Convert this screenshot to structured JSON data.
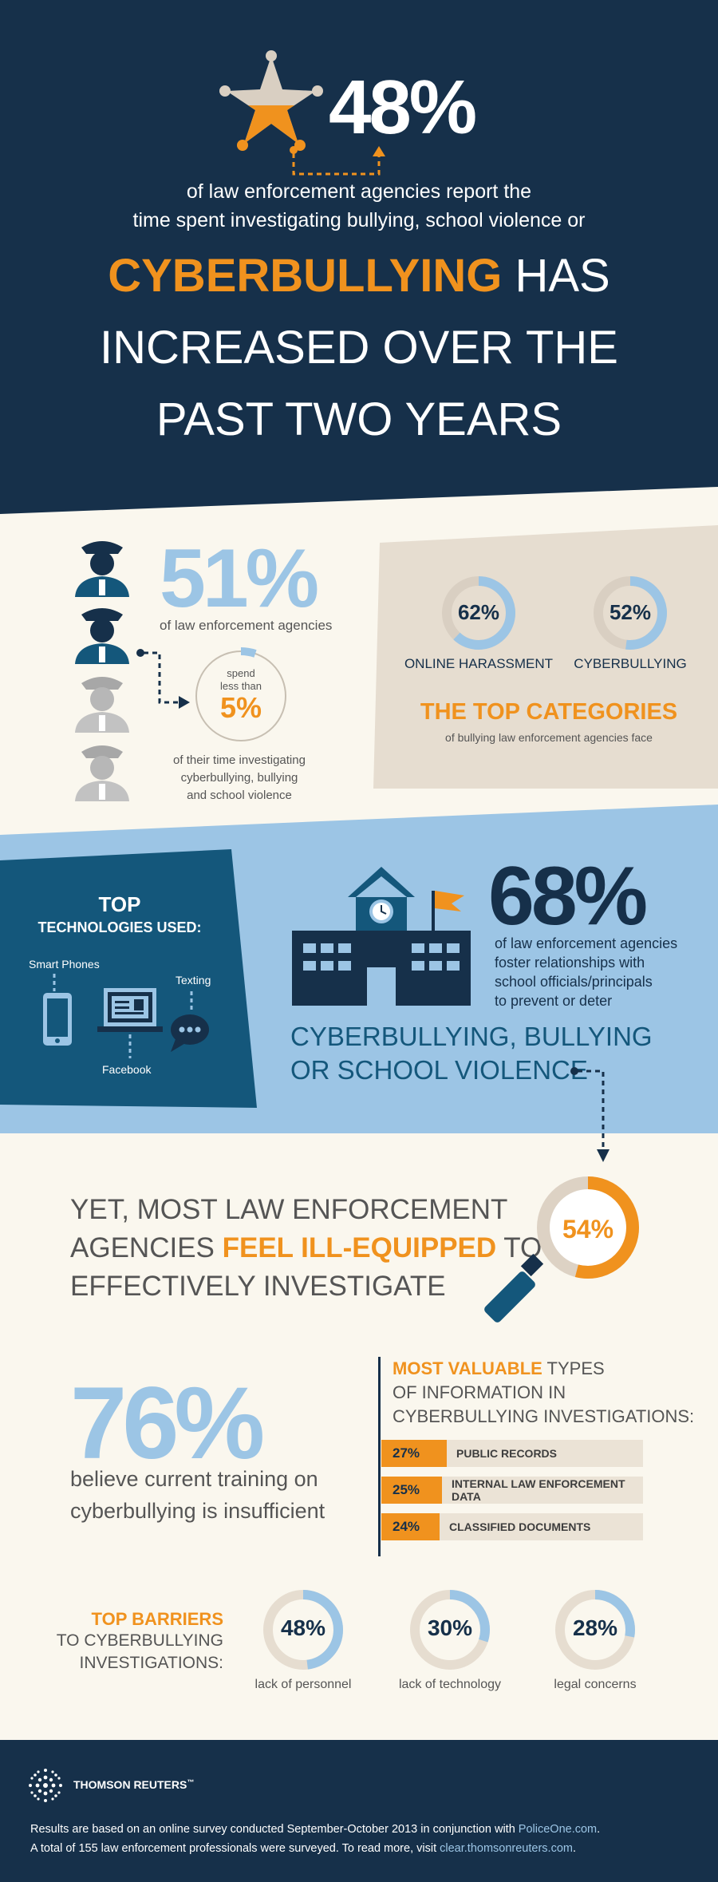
{
  "hero": {
    "stat": "48%",
    "line1": "of law enforcement agencies report the",
    "line2": "time spent investigating bullying, school violence or",
    "headline_accent": "CYBERBULLYING",
    "headline_rest1": " HAS",
    "headline_line2": "INCREASED OVER THE",
    "headline_line3": "PAST TWO YEARS"
  },
  "time": {
    "stat": "51%",
    "sub": "of law enforcement agencies",
    "circle_text1": "spend",
    "circle_text2": "less than",
    "circle_pct": "5%",
    "caption1": "of their time investigating",
    "caption2": "cyberbullying, bullying",
    "caption3": "and school violence"
  },
  "categories": {
    "title": "THE TOP CATEGORIES",
    "subtitle": "of bullying law enforcement agencies face"
  },
  "tech": {
    "title1": "TOP",
    "title2": "TECHNOLOGIES USED:",
    "smart_phones": "Smart Phones",
    "texting": "Texting",
    "facebook": "Facebook"
  },
  "school": {
    "stat": "68%",
    "line1": "of law enforcement agencies",
    "line2": "foster relationships with",
    "line3": "school officials/principals",
    "line4": "to prevent or deter",
    "big1": "CYBERBULLYING, BULLYING",
    "big2": "OR SCHOOL VIOLENCE"
  },
  "equip": {
    "line1": "YET, MOST LAW ENFORCEMENT",
    "line2_a": "AGENCIES ",
    "line2_b": "FEEL ILL-EQUIPPED",
    "line2_c": " TO",
    "line3": "EFFECTIVELY INVESTIGATE"
  },
  "training": {
    "stat": "76%",
    "line1": "believe current training on",
    "line2": "cyberbullying is insufficient"
  },
  "info": {
    "title_accent": "MOST VALUABLE",
    "title_rest": " TYPES",
    "title_line2": "OF INFORMATION IN",
    "title_line3": "CYBERBULLYING INVESTIGATIONS:"
  },
  "barriers": {
    "title1": "TOP BARRIERS",
    "title2": "TO CYBERBULLYING",
    "title3": "INVESTIGATIONS:"
  },
  "footer": {
    "brand": "THOMSON REUTERS",
    "tm": "™",
    "note1_a": "Results are based on an online survey conducted September-October 2013 in conjunction with ",
    "note1_link": "PoliceOne.com",
    "note1_b": ".",
    "note2_a": "A total of 155 law enforcement professionals were surveyed. To read more, visit ",
    "note2_link": "clear.thomsonreuters.com",
    "note2_b": "."
  },
  "colors": {
    "navy": "#16304a",
    "orange": "#f0921e",
    "light_blue": "#9cc5e5",
    "beige": "#e6ddd0",
    "cream": "#faf7ee",
    "teal": "#14577b"
  },
  "chart_data": [
    {
      "type": "pie",
      "name": "top-categories",
      "categories": [
        "ONLINE HARASSMENT",
        "CYBERBULLYING"
      ],
      "values": [
        62,
        52
      ],
      "labels": [
        "62%",
        "52%"
      ]
    },
    {
      "type": "pie",
      "name": "ill-equipped",
      "categories": [
        ""
      ],
      "values": [
        54
      ],
      "labels": [
        "54%"
      ]
    },
    {
      "type": "bar",
      "name": "most-valuable-information",
      "categories": [
        "PUBLIC RECORDS",
        "INTERNAL LAW ENFORCEMENT DATA",
        "CLASSIFIED DOCUMENTS"
      ],
      "values": [
        27,
        25,
        24
      ],
      "labels": [
        "27%",
        "25%",
        "24%"
      ]
    },
    {
      "type": "pie",
      "name": "top-barriers",
      "categories": [
        "lack of personnel",
        "lack of technology",
        "legal concerns"
      ],
      "values": [
        48,
        30,
        28
      ],
      "labels": [
        "48%",
        "30%",
        "28%"
      ]
    }
  ]
}
